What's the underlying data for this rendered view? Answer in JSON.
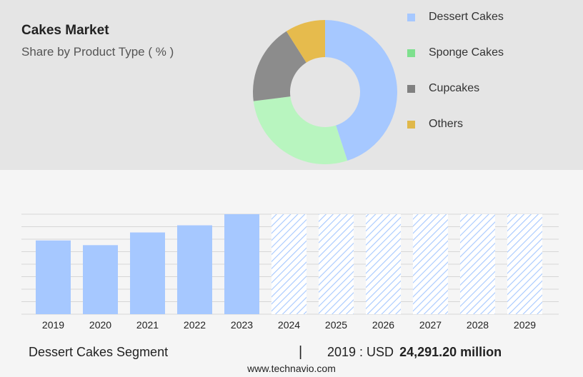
{
  "header": {
    "title": "Cakes Market",
    "subtitle": "Share by Product Type ( % )"
  },
  "colors": {
    "dessert_cakes": "#a6c8ff",
    "sponge_cakes": "#b8f5bf",
    "cupcakes": "#8c8c8c",
    "others": "#e6bb4d",
    "legend_sponge": "#7ee08e",
    "legend_cupcakes": "#808080",
    "legend_others": "#e0b84a"
  },
  "legend": {
    "items": [
      {
        "label": "Dessert Cakes"
      },
      {
        "label": "Sponge Cakes"
      },
      {
        "label": "Cupcakes"
      },
      {
        "label": "Others"
      }
    ]
  },
  "chart_data": [
    {
      "type": "pie",
      "title": "",
      "categories": [
        "Dessert Cakes",
        "Sponge Cakes",
        "Cupcakes",
        "Others"
      ],
      "values": [
        45,
        28,
        18,
        9
      ],
      "legend": "right"
    },
    {
      "type": "bar",
      "title": "",
      "categories": [
        "2019",
        "2020",
        "2021",
        "2022",
        "2023",
        "2024",
        "2025",
        "2026",
        "2027",
        "2028",
        "2029"
      ],
      "values": [
        24291.2,
        23700,
        25300,
        26200,
        27600,
        null,
        null,
        null,
        null,
        null,
        null
      ],
      "forecast_start": "2024",
      "ylim": [
        15000,
        27600
      ],
      "grid": true,
      "xlabel": "",
      "ylabel": ""
    }
  ],
  "summary": {
    "segment": "Dessert Cakes Segment",
    "divider": "|",
    "year_prefix": "2019 : USD",
    "value": "24,291.20 million"
  },
  "footer": {
    "source": "www.technavio.com"
  }
}
